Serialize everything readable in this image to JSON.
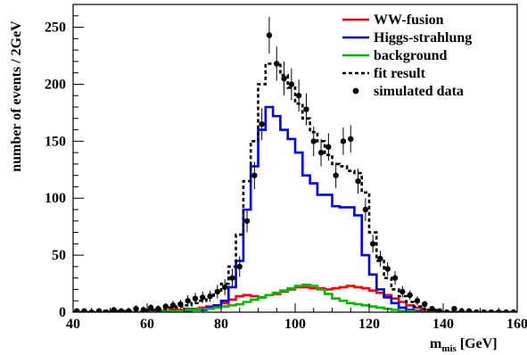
{
  "chart_data": {
    "type": "line",
    "title": "",
    "xlabel": {
      "main": "m",
      "sub": "mis",
      "unit": " [GeV]"
    },
    "ylabel": "number of events / 2GeV",
    "xlim": [
      40,
      160
    ],
    "ylim": [
      0,
      270
    ],
    "xticks": [
      40,
      60,
      80,
      100,
      120,
      140,
      160
    ],
    "yticks": [
      0,
      50,
      100,
      150,
      200,
      250
    ],
    "bin_width": 2,
    "grid": false,
    "legend_position": "top-right",
    "series": [
      {
        "name": "WW-fusion",
        "style": "step",
        "color": "#ff0000",
        "x": [
          40,
          42,
          44,
          46,
          48,
          50,
          52,
          54,
          56,
          58,
          60,
          62,
          64,
          66,
          68,
          70,
          72,
          74,
          76,
          78,
          80,
          82,
          84,
          86,
          88,
          90,
          92,
          94,
          96,
          98,
          100,
          102,
          104,
          106,
          108,
          110,
          112,
          114,
          116,
          118,
          120,
          122,
          124,
          126,
          128,
          130,
          132,
          134,
          136,
          138,
          140,
          142,
          144,
          146,
          148,
          150,
          152,
          154,
          156,
          158
        ],
        "values": [
          0,
          0,
          0,
          0,
          0,
          0,
          0,
          0,
          0,
          0,
          1,
          1,
          1,
          2,
          2,
          3,
          3,
          4,
          5,
          6,
          8,
          11,
          14,
          15,
          14,
          13,
          15,
          16,
          18,
          20,
          22,
          22,
          21,
          21,
          20,
          21,
          22,
          23,
          22,
          21,
          19,
          17,
          15,
          12,
          9,
          6,
          4,
          2,
          1,
          0,
          0,
          0,
          0,
          0,
          0,
          0,
          0,
          0,
          0,
          0
        ]
      },
      {
        "name": "Higgs-strahlung",
        "style": "step",
        "color": "#0000ff",
        "x": [
          40,
          42,
          44,
          46,
          48,
          50,
          52,
          54,
          56,
          58,
          60,
          62,
          64,
          66,
          68,
          70,
          72,
          74,
          76,
          78,
          80,
          82,
          84,
          86,
          88,
          90,
          92,
          94,
          96,
          98,
          100,
          102,
          104,
          106,
          108,
          110,
          112,
          114,
          116,
          118,
          120,
          122,
          124,
          126,
          128,
          130,
          132,
          134,
          136,
          138,
          140,
          142,
          144,
          146,
          148,
          150,
          152,
          154,
          156,
          158
        ],
        "values": [
          0,
          0,
          0,
          0,
          0,
          0,
          0,
          0,
          0,
          0,
          0,
          0,
          0,
          1,
          1,
          1,
          2,
          2,
          4,
          6,
          10,
          22,
          45,
          90,
          128,
          160,
          180,
          172,
          160,
          152,
          140,
          120,
          113,
          103,
          103,
          93,
          92,
          92,
          85,
          50,
          33,
          20,
          13,
          8,
          4,
          2,
          1,
          0,
          0,
          0,
          0,
          0,
          0,
          0,
          0,
          0,
          0,
          0,
          0,
          0
        ]
      },
      {
        "name": "background",
        "style": "step",
        "color": "#00bb00",
        "x": [
          40,
          42,
          44,
          46,
          48,
          50,
          52,
          54,
          56,
          58,
          60,
          62,
          64,
          66,
          68,
          70,
          72,
          74,
          76,
          78,
          80,
          82,
          84,
          86,
          88,
          90,
          92,
          94,
          96,
          98,
          100,
          102,
          104,
          106,
          108,
          110,
          112,
          114,
          116,
          118,
          120,
          122,
          124,
          126,
          128,
          130,
          132,
          134,
          136,
          138,
          140,
          142,
          144,
          146,
          148,
          150,
          152,
          154,
          156,
          158
        ],
        "values": [
          0,
          0,
          0,
          0,
          0,
          0,
          0,
          0,
          0,
          0,
          0,
          0,
          1,
          1,
          1,
          2,
          2,
          3,
          3,
          4,
          5,
          6,
          7,
          9,
          11,
          13,
          15,
          17,
          19,
          21,
          23,
          24,
          23,
          20,
          16,
          12,
          10,
          8,
          7,
          6,
          5,
          4,
          3,
          2,
          1,
          1,
          0,
          0,
          0,
          0,
          0,
          0,
          0,
          0,
          0,
          0,
          0,
          0,
          0,
          0
        ]
      },
      {
        "name": "fit result",
        "style": "step",
        "color": "#000000",
        "dashed": true,
        "x": [
          40,
          42,
          44,
          46,
          48,
          50,
          52,
          54,
          56,
          58,
          60,
          62,
          64,
          66,
          68,
          70,
          72,
          74,
          76,
          78,
          80,
          82,
          84,
          86,
          88,
          90,
          92,
          94,
          96,
          98,
          100,
          102,
          104,
          106,
          108,
          110,
          112,
          114,
          116,
          118,
          120,
          122,
          124,
          126,
          128,
          130,
          132,
          134,
          136,
          138,
          140,
          142,
          144,
          146,
          148,
          150,
          152,
          154,
          156,
          158
        ],
        "values": [
          0,
          0,
          0,
          0,
          1,
          1,
          1,
          1,
          1,
          1,
          2,
          2,
          3,
          4,
          5,
          6,
          8,
          10,
          13,
          18,
          25,
          40,
          68,
          115,
          150,
          200,
          218,
          218,
          208,
          197,
          183,
          170,
          158,
          150,
          138,
          130,
          128,
          124,
          122,
          105,
          70,
          45,
          30,
          20,
          14,
          9,
          5,
          3,
          2,
          1,
          0,
          0,
          0,
          0,
          0,
          0,
          0,
          0,
          0,
          0
        ]
      }
    ],
    "data_points": {
      "name": "simulated data",
      "color": "#000000",
      "x": [
        41,
        43,
        45,
        47,
        49,
        51,
        53,
        55,
        57,
        59,
        61,
        63,
        65,
        67,
        69,
        71,
        73,
        75,
        77,
        79,
        81,
        83,
        85,
        87,
        89,
        91,
        93,
        95,
        97,
        99,
        101,
        103,
        105,
        107,
        109,
        111,
        113,
        115,
        117,
        119,
        121,
        123,
        125,
        127,
        129,
        131,
        133,
        135,
        137,
        139,
        141,
        143,
        145,
        147,
        149,
        151,
        153,
        155,
        157,
        159
      ],
      "y": [
        1,
        1,
        0,
        1,
        0,
        2,
        1,
        1,
        3,
        2,
        4,
        3,
        5,
        6,
        7,
        10,
        12,
        13,
        14,
        18,
        22,
        30,
        40,
        80,
        120,
        165,
        243,
        218,
        205,
        200,
        190,
        178,
        150,
        140,
        145,
        120,
        150,
        152,
        115,
        90,
        60,
        47,
        38,
        30,
        18,
        15,
        10,
        7,
        3,
        1,
        0,
        3,
        1,
        1,
        0,
        0,
        0,
        0,
        0,
        0
      ],
      "err": [
        2,
        2,
        0,
        2,
        0,
        2,
        2,
        2,
        3,
        3,
        3,
        3,
        3,
        4,
        4,
        5,
        5,
        5,
        5,
        6,
        7,
        8,
        9,
        10,
        12,
        14,
        16,
        15,
        15,
        14,
        14,
        14,
        13,
        12,
        12,
        11,
        12,
        12,
        11,
        10,
        8,
        7,
        6,
        6,
        5,
        4,
        4,
        3,
        2,
        2,
        0,
        2,
        2,
        2,
        0,
        0,
        0,
        0,
        0,
        0
      ]
    }
  },
  "legend": {
    "items": [
      {
        "label": "WW-fusion",
        "kind": "line",
        "color": "#ff0000"
      },
      {
        "label": "Higgs-strahlung",
        "kind": "line",
        "color": "#0000ff"
      },
      {
        "label": "background",
        "kind": "line",
        "color": "#00bb00"
      },
      {
        "label": "fit result",
        "kind": "dashed",
        "color": "#000000"
      },
      {
        "label": "simulated data",
        "kind": "marker",
        "color": "#000000"
      }
    ]
  }
}
